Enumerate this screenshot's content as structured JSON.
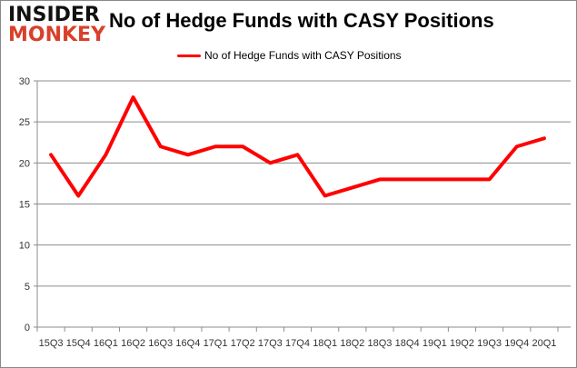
{
  "logo": {
    "line1": "INSIDER",
    "line2": "MONKEY"
  },
  "chart_data": {
    "type": "line",
    "title": "No of Hedge Funds with CASY Positions",
    "legend_position": "top",
    "grid": true,
    "ylim": [
      0,
      30
    ],
    "yticks": [
      0,
      5,
      10,
      15,
      20,
      25,
      30
    ],
    "categories": [
      "15Q3",
      "15Q4",
      "16Q1",
      "16Q2",
      "16Q3",
      "16Q4",
      "17Q1",
      "17Q2",
      "17Q3",
      "17Q4",
      "18Q1",
      "18Q2",
      "18Q3",
      "18Q4",
      "19Q1",
      "19Q2",
      "19Q3",
      "19Q4",
      "20Q1"
    ],
    "series": [
      {
        "name": "No of Hedge Funds with CASY Positions",
        "color": "#ff0000",
        "values": [
          21,
          16,
          21,
          28,
          22,
          21,
          22,
          22,
          20,
          21,
          16,
          17,
          18,
          18,
          18,
          18,
          18,
          22,
          23
        ]
      }
    ]
  }
}
